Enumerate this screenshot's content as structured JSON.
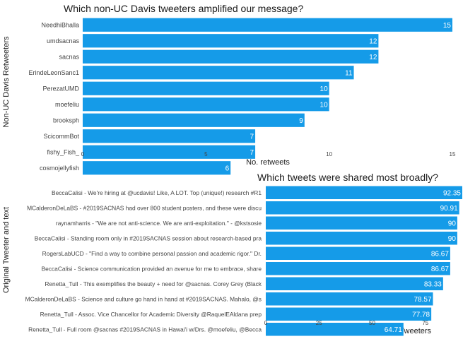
{
  "colors": {
    "bar": "#159BE8",
    "bar_label": "#ffffff",
    "text": "#1a1a1a",
    "tick": "#444444"
  },
  "chart_data": [
    {
      "type": "bar",
      "orientation": "horizontal",
      "title": "Which non-UC Davis tweeters amplified our message?",
      "xlabel": "No. retweets",
      "ylabel": "Non-UC Davis Retweeters",
      "categories": [
        "NeedhiBhalla",
        "umdsacnas",
        "sacnas",
        "ErindeLeonSanc1",
        "PerezatUMD",
        "moefeliu",
        "brooksph",
        "ScicommBot",
        "fishy_Fish_",
        "cosmojellyfish"
      ],
      "values": [
        15,
        12,
        12,
        11,
        10,
        10,
        9,
        7,
        7,
        6
      ],
      "value_labels": [
        "15",
        "12",
        "12",
        "11",
        "10",
        "10",
        "9",
        "7",
        "7",
        "6"
      ],
      "xlim": [
        0,
        15
      ],
      "xticks": [
        "0",
        "5",
        "10",
        "15"
      ],
      "grid": false
    },
    {
      "type": "bar",
      "orientation": "horizontal",
      "title": "Which tweets were shared most broadly?",
      "xlabel": "% retweets by non-UC Davis Tweeters",
      "ylabel": "Original Tweeter and text",
      "categories": [
        "BeccaCalisi - We're hiring at @ucdavis! Like, A LOT. Top (unique!) research #R1",
        "MCalderonDeLaBS - #2019SACNAS had over 800 student posters, and these were discu",
        "raynamharris - \"We are not anti-science. We are anti-exploitation.\" - @kstsosie",
        "BeccaCalisi - Standing room only in #2019SACNAS session about research-based pra",
        "RogersLabUCD - \"Find a way to combine personal passion and academic rigor.\" Dr.",
        "BeccaCalisi - Science communication provided an avenue for me to embrace, share",
        "Renetta_Tull - This exemplifies the beauty + need for @sacnas. Corey Grey (Black",
        "MCalderonDeLaBS - Science and culture go hand in hand at #2019SACNAS. Mahalo, @s",
        "Renetta_Tull - Assoc. Vice Chancellor for Academic Diversity @RaquelEAldana prep",
        "Renetta_Tull - Full room @sacnas #2019SACNAS in Hawai'i w/Drs. @moefeliu, @Becca"
      ],
      "values": [
        92.35,
        90.91,
        90,
        90,
        86.67,
        86.67,
        83.33,
        78.57,
        77.78,
        64.71
      ],
      "value_labels": [
        "92.35",
        "90.91",
        "90",
        "90",
        "86.67",
        "86.67",
        "83.33",
        "78.57",
        "77.78",
        "64.71"
      ],
      "xlim": [
        0,
        92.35
      ],
      "xtick_values": [
        0,
        25,
        50,
        75
      ],
      "xticks": [
        "0",
        "25",
        "50",
        "75"
      ],
      "grid": false
    }
  ]
}
